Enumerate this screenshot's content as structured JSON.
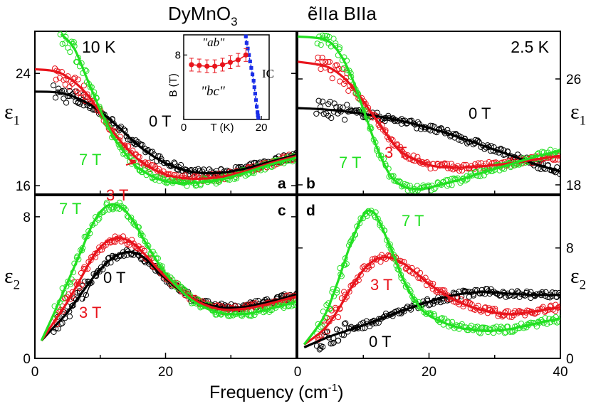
{
  "figure": {
    "title_main": "DyMnO",
    "title_sub": "3",
    "title_suffix": "ẽIIa  BIIa",
    "xlabel": "Frequency (cm",
    "xlabel_sup": "-1",
    "xlabel_end": ")",
    "colors": {
      "0 T": "#000000",
      "3 T": "#e8141c",
      "7 T": "#22e022"
    }
  },
  "chart_data": [
    {
      "id": "a",
      "type": "line",
      "panel_label": "a",
      "temperature": "10 K",
      "ylabel": "ε",
      "ylabel_sub": "1",
      "xlim": [
        0,
        40
      ],
      "ylim": [
        15.4,
        27.0
      ],
      "xticks": [
        0,
        20
      ],
      "yticks": [
        16,
        24
      ],
      "series": [
        {
          "name": "0 T",
          "x": [
            0,
            4,
            8,
            12,
            16,
            20,
            24,
            28,
            32,
            36,
            40
          ],
          "y": [
            22.7,
            22.6,
            21.9,
            20.5,
            18.8,
            17.6,
            17.0,
            16.9,
            17.2,
            17.7,
            18.2
          ]
        },
        {
          "name": "3 T",
          "x": [
            0,
            4,
            8,
            12,
            16,
            20,
            24,
            28,
            32,
            36,
            40
          ],
          "y": [
            24.3,
            24.0,
            22.5,
            19.8,
            17.8,
            16.8,
            16.5,
            16.6,
            17.0,
            17.6,
            18.1
          ]
        },
        {
          "name": "7 T",
          "x": [
            4,
            6,
            8,
            10,
            12,
            14,
            16,
            20,
            24,
            28,
            32,
            36,
            40
          ],
          "y": [
            26.8,
            25.8,
            23.6,
            21.4,
            19.5,
            18.2,
            17.2,
            16.3,
            16.2,
            16.4,
            16.9,
            17.5,
            18.0
          ]
        }
      ],
      "annotations": [
        {
          "text": "0 T",
          "series": "0 T"
        },
        {
          "text": "3 T",
          "series": "3 T"
        },
        {
          "text": "7 T",
          "series": "7 T"
        }
      ],
      "inset": {
        "xlabel": "T (K)",
        "ylabel": "B (T)",
        "xlim": [
          0,
          22
        ],
        "ylim": [
          0,
          10.5
        ],
        "xticks": [
          0,
          20
        ],
        "yticks": [
          8
        ],
        "labels": [
          "\"ab\"",
          "\"bc\"",
          "IC"
        ],
        "red_points": {
          "x": [
            2,
            4,
            6,
            8,
            10,
            12,
            14,
            16
          ],
          "y": [
            6.8,
            6.7,
            6.6,
            6.6,
            6.8,
            7.1,
            7.4,
            8.0
          ]
        },
        "blue_points": {
          "x": [
            16.0,
            16.2,
            16.5,
            16.8,
            17.1,
            17.4,
            17.7,
            18.0,
            18.2,
            18.4,
            18.6,
            18.8,
            19.0,
            19.1,
            19.2
          ],
          "y": [
            10.3,
            9.5,
            8.8,
            8.0,
            7.2,
            6.4,
            5.6,
            4.8,
            4.0,
            3.2,
            2.4,
            1.6,
            0.9,
            0.5,
            0.2
          ]
        }
      }
    },
    {
      "id": "b",
      "type": "line",
      "panel_label": "b",
      "temperature": "2.5 K",
      "ylabel": "ε",
      "ylabel_sub": "1",
      "xlim": [
        0,
        40
      ],
      "ylim": [
        17.3,
        29.6
      ],
      "xticks": [],
      "yticks": [
        18,
        26
      ],
      "series": [
        {
          "name": "0 T",
          "x": [
            0,
            4,
            8,
            12,
            16,
            20,
            24,
            28,
            32,
            36,
            40
          ],
          "y": [
            23.8,
            23.7,
            23.5,
            23.2,
            22.8,
            22.3,
            21.7,
            21.0,
            20.3,
            19.6,
            19.0
          ]
        },
        {
          "name": "3 T",
          "x": [
            0,
            4,
            6,
            8,
            10,
            12,
            14,
            16,
            20,
            24,
            28,
            32,
            36,
            40
          ],
          "y": [
            27.3,
            27.0,
            26.5,
            25.6,
            24.3,
            22.9,
            21.5,
            20.4,
            19.5,
            19.3,
            19.4,
            19.6,
            19.9,
            20.2
          ]
        },
        {
          "name": "7 T",
          "x": [
            0,
            4,
            6,
            8,
            10,
            12,
            14,
            16,
            18,
            20,
            24,
            28,
            32,
            36,
            40
          ],
          "y": [
            29.2,
            29.0,
            28.2,
            26.4,
            23.7,
            20.9,
            18.8,
            17.9,
            17.7,
            17.8,
            18.3,
            18.9,
            19.5,
            20.1,
            20.6
          ]
        }
      ],
      "annotations": [
        {
          "text": "0 T",
          "series": "0 T"
        },
        {
          "text": "3 T",
          "series": "3 T"
        },
        {
          "text": "7 T",
          "series": "7 T"
        }
      ]
    },
    {
      "id": "c",
      "type": "line",
      "panel_label": "c",
      "ylabel": "ε",
      "ylabel_sub": "2",
      "xlim": [
        0,
        40
      ],
      "ylim": [
        0,
        9.2
      ],
      "xticks": [
        0,
        20
      ],
      "yticks": [
        0,
        8
      ],
      "series": [
        {
          "name": "0 T",
          "x": [
            1,
            3,
            5,
            7,
            9,
            11,
            13,
            15,
            17,
            20,
            24,
            28,
            32,
            36,
            40
          ],
          "y": [
            1.0,
            1.8,
            2.6,
            3.6,
            4.6,
            5.4,
            5.9,
            6.0,
            5.6,
            4.5,
            3.4,
            2.9,
            2.9,
            3.2,
            3.6
          ]
        },
        {
          "name": "3 T",
          "x": [
            1,
            3,
            5,
            7,
            9,
            11,
            13,
            15,
            17,
            20,
            24,
            28,
            32,
            36,
            40
          ],
          "y": [
            1.0,
            2.1,
            3.2,
            4.5,
            5.8,
            6.6,
            6.8,
            6.5,
            5.8,
            4.6,
            3.4,
            2.8,
            2.8,
            3.1,
            3.5
          ]
        },
        {
          "name": "7 T",
          "x": [
            1,
            3,
            5,
            7,
            9,
            11,
            13,
            15,
            17,
            20,
            24,
            28,
            32,
            36,
            40
          ],
          "y": [
            1.0,
            2.6,
            4.3,
            6.0,
            7.7,
            8.6,
            8.6,
            7.8,
            6.5,
            4.8,
            3.3,
            2.6,
            2.5,
            2.8,
            3.2
          ]
        }
      ],
      "annotations": [
        {
          "text": "0 T",
          "series": "0 T"
        },
        {
          "text": "3 T",
          "series": "3 T"
        },
        {
          "text": "7 T",
          "series": "7 T"
        }
      ]
    },
    {
      "id": "d",
      "type": "line",
      "panel_label": "d",
      "ylabel": "ε",
      "ylabel_sub": "2",
      "xlim": [
        0,
        40
      ],
      "ylim": [
        0,
        11.8
      ],
      "xticks": [
        0,
        20,
        40
      ],
      "yticks": [
        0,
        8
      ],
      "series": [
        {
          "name": "0 T",
          "x": [
            1,
            5,
            10,
            15,
            20,
            24,
            28,
            32,
            36,
            40
          ],
          "y": [
            0.8,
            1.6,
            2.4,
            3.3,
            4.1,
            4.6,
            4.8,
            4.7,
            4.6,
            4.6
          ]
        },
        {
          "name": "3 T",
          "x": [
            1,
            4,
            6,
            8,
            10,
            12,
            14,
            16,
            18,
            20,
            24,
            28,
            32,
            36,
            40
          ],
          "y": [
            1.0,
            2.1,
            3.4,
            5.0,
            6.4,
            7.2,
            7.3,
            6.9,
            6.2,
            5.4,
            4.2,
            3.5,
            3.2,
            3.4,
            3.7
          ]
        },
        {
          "name": "7 T",
          "x": [
            1,
            4,
            6,
            8,
            10,
            11,
            12,
            14,
            16,
            18,
            20,
            24,
            28,
            32,
            36,
            40
          ],
          "y": [
            1.0,
            3.0,
            5.4,
            8.2,
            10.4,
            10.7,
            10.3,
            8.2,
            5.8,
            4.1,
            3.1,
            2.3,
            2.0,
            2.1,
            2.5,
            2.9
          ]
        }
      ],
      "annotations": [
        {
          "text": "0 T",
          "series": "0 T"
        },
        {
          "text": "3 T",
          "series": "3 T"
        },
        {
          "text": "7 T",
          "series": "7 T"
        }
      ]
    }
  ]
}
